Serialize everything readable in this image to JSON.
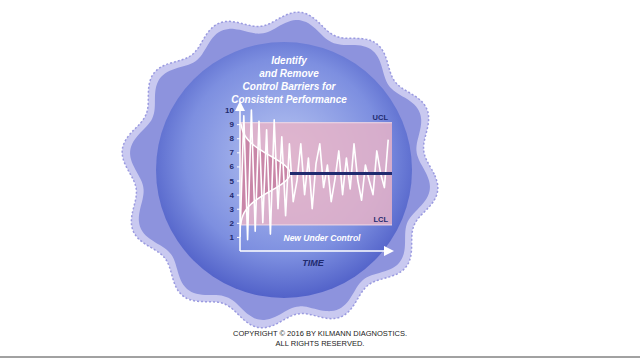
{
  "chart_data": {
    "type": "line",
    "title": [
      "Identify",
      "and Remove",
      "Control Barriers for",
      "Consistent Performance"
    ],
    "x_label": "TIME",
    "annotation": "New Under Control",
    "x": [
      0,
      1,
      2,
      3,
      4,
      5,
      6,
      7,
      8,
      9,
      10,
      11,
      12,
      13,
      14,
      15,
      16,
      17,
      18,
      19,
      20,
      21,
      22,
      23,
      24,
      25,
      26,
      27,
      28,
      29,
      30,
      31,
      32,
      33,
      34,
      35,
      36,
      37,
      38,
      39
    ],
    "values": [
      1,
      9.6,
      0.8,
      10,
      1.4,
      9.2,
      2,
      8.6,
      1.2,
      9.3,
      3,
      8.1,
      2.5,
      7.6,
      3.5,
      5,
      7.6,
      4,
      6.6,
      3,
      6.2,
      7.6,
      4.5,
      6.1,
      3.5,
      5.1,
      7.1,
      4,
      6.6,
      4.4,
      7.6,
      5,
      3.6,
      6.1,
      5,
      4,
      7.1,
      5.5,
      4.5,
      7.9
    ],
    "color": "#ffffff",
    "xlim": [
      0,
      40
    ],
    "xticks": [],
    "ylim": [
      0,
      10.5
    ],
    "yticks": [
      1,
      2,
      3,
      4,
      5,
      6,
      7,
      8,
      9,
      10
    ],
    "tick_labels": "y",
    "control_limits": {
      "ucl": {
        "label": "UCL",
        "value": 9.1
      },
      "lcl": {
        "label": "LCL",
        "value": 1.85
      },
      "mean": 5.5
    },
    "distribution": {
      "mean": 5.5,
      "sd": 1.25
    }
  },
  "footer": [
    "COPYRIGHT © 2016 BY KILMANN DIAGNOSTICS.",
    "ALL RIGHTS RESERVED."
  ]
}
